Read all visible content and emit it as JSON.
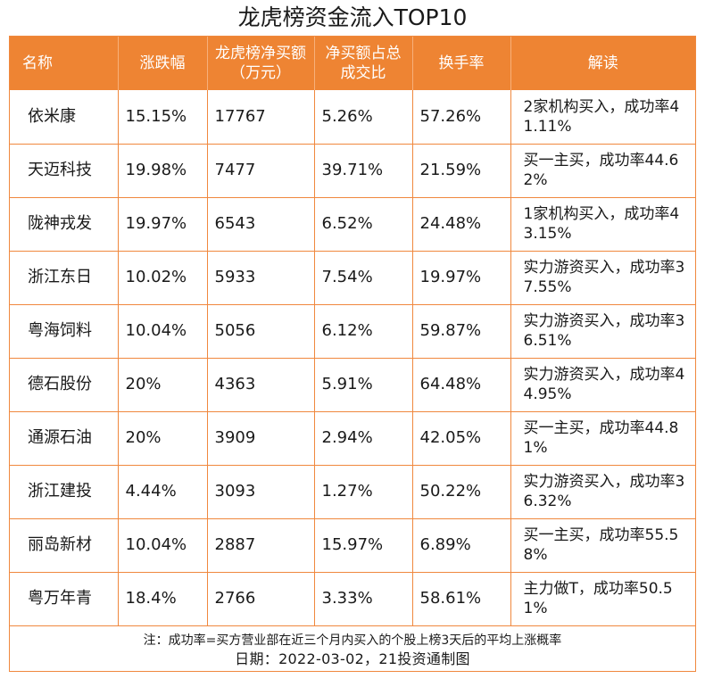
{
  "title": "龙虎榜资金流入TOP10",
  "columns": [
    "名称",
    "涨跌幅",
    "龙虎榜净买额（万元）",
    "净买额占总成交比",
    "换手率",
    "解读"
  ],
  "rows": [
    [
      "依米康",
      "15.15%",
      "17767",
      "5.26%",
      "57.26%",
      "2家机构买入，成功率41.11%"
    ],
    [
      "天迈科技",
      "19.98%",
      "7477",
      "39.71%",
      "21.59%",
      "买一主买，成功率44.62%"
    ],
    [
      "陇神戎发",
      "19.97%",
      "6543",
      "6.52%",
      "24.48%",
      "1家机构买入，成功率43.15%"
    ],
    [
      "浙江东日",
      "10.02%",
      "5933",
      "7.54%",
      "19.97%",
      "实力游资买入，成功率37.55%"
    ],
    [
      "粤海饲料",
      "10.04%",
      "5056",
      "6.12%",
      "59.87%",
      "实力游资买入，成功率36.51%"
    ],
    [
      "德石股份",
      "20%",
      "4363",
      "5.91%",
      "64.48%",
      "实力游资买入，成功率44.95%"
    ],
    [
      "通源石油",
      "20%",
      "3909",
      "2.94%",
      "42.05%",
      "买一主买，成功率44.81%"
    ],
    [
      "浙江建投",
      "4.44%",
      "3093",
      "1.27%",
      "50.22%",
      "实力游资买入，成功率36.32%"
    ],
    [
      "丽岛新材",
      "10.04%",
      "2887",
      "15.97%",
      "6.89%",
      "买一主买，成功率55.58%"
    ],
    [
      "粤万年青",
      "18.4%",
      "2766",
      "3.33%",
      "58.61%",
      "主力做T，成功率50.51%"
    ]
  ],
  "footer": {
    "note": "注：成功率=买方营业部在近三个月内买入的个股上榜3天后的平均上涨概率",
    "date": "日期：2022-03-02，21投资通制图"
  },
  "colors": {
    "header_bg": "#ee8433",
    "border": "#f0883e"
  }
}
